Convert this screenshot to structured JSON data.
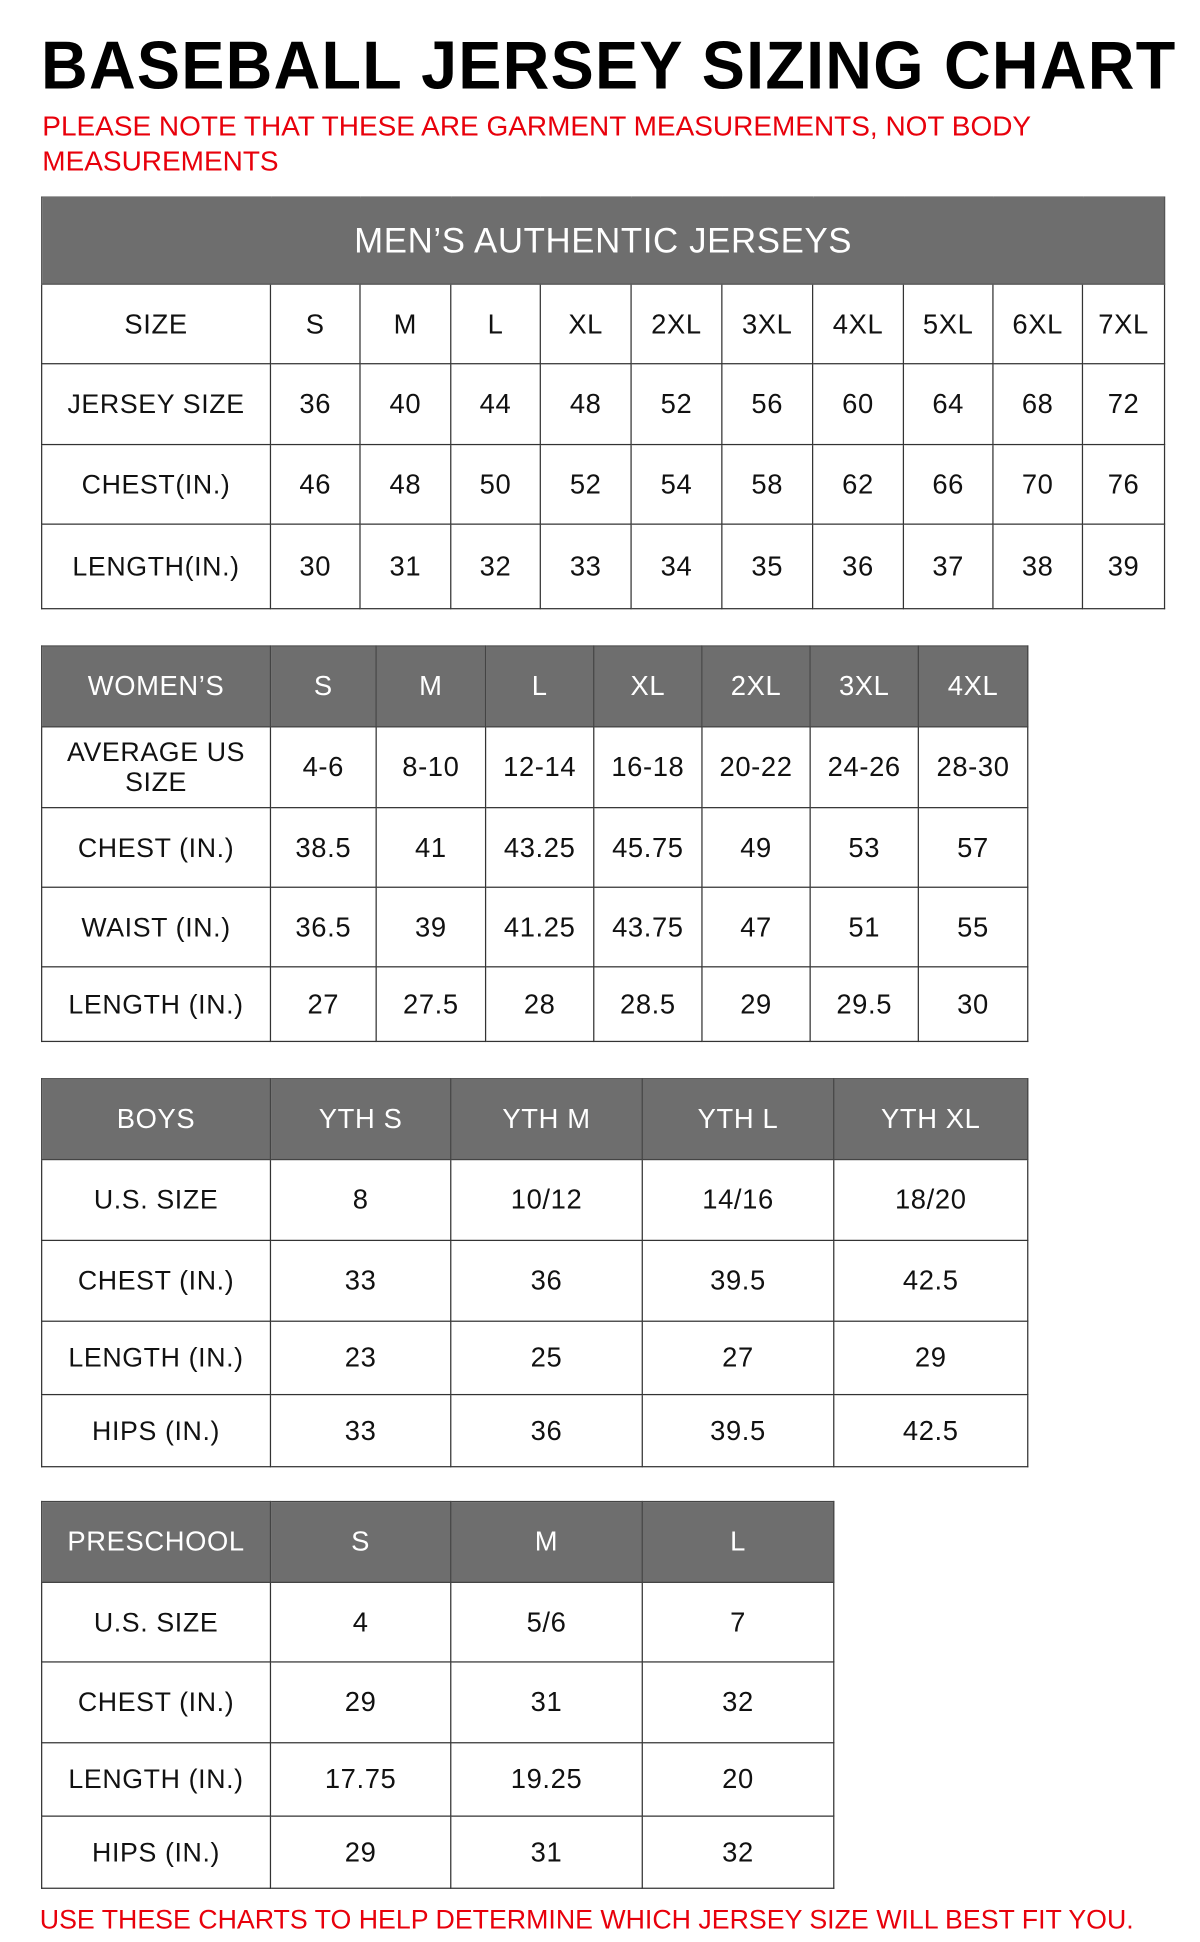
{
  "title": "BASEBALL JERSEY SIZING CHART",
  "note": "PLEASE NOTE THAT THESE ARE GARMENT MEASUREMENTS, NOT BODY MEASUREMENTS",
  "footer": "USE THESE CHARTS TO HELP DETERMINE WHICH JERSEY SIZE WILL BEST FIT YOU.",
  "colors": {
    "header_bg": "#6e6e6e",
    "note_red": "#e8000b"
  },
  "tables": [
    {
      "caption": "MEN’S AUTHENTIC JERSEYS",
      "header": [
        "SIZE",
        "S",
        "M",
        "L",
        "XL",
        "2XL",
        "3XL",
        "4XL",
        "5XL",
        "6XL",
        "7XL"
      ],
      "header_dark": false,
      "rows": [
        [
          "JERSEY SIZE",
          "36",
          "40",
          "44",
          "48",
          "52",
          "56",
          "60",
          "64",
          "68",
          "72"
        ],
        [
          "CHEST(IN.)",
          "46",
          "48",
          "50",
          "52",
          "54",
          "58",
          "62",
          "66",
          "70",
          "76"
        ],
        [
          "LENGTH(IN.)",
          "30",
          "31",
          "32",
          "33",
          "34",
          "35",
          "36",
          "37",
          "38",
          "39"
        ]
      ]
    },
    {
      "header": [
        "WOMEN’S",
        "S",
        "M",
        "L",
        "XL",
        "2XL",
        "3XL",
        "4XL"
      ],
      "header_dark": true,
      "rows": [
        [
          "AVERAGE US SIZE",
          "4-6",
          "8-10",
          "12-14",
          "16-18",
          "20-22",
          "24-26",
          "28-30"
        ],
        [
          "CHEST (IN.)",
          "38.5",
          "41",
          "43.25",
          "45.75",
          "49",
          "53",
          "57"
        ],
        [
          "WAIST (IN.)",
          "36.5",
          "39",
          "41.25",
          "43.75",
          "47",
          "51",
          "55"
        ],
        [
          "LENGTH (IN.)",
          "27",
          "27.5",
          "28",
          "28.5",
          "29",
          "29.5",
          "30"
        ]
      ]
    },
    {
      "header": [
        "BOYS",
        "YTH S",
        "YTH M",
        "YTH L",
        "YTH XL"
      ],
      "header_dark": true,
      "rows": [
        [
          "U.S. SIZE",
          "8",
          "10/12",
          "14/16",
          "18/20"
        ],
        [
          "CHEST (IN.)",
          "33",
          "36",
          "39.5",
          "42.5"
        ],
        [
          "LENGTH (IN.)",
          "23",
          "25",
          "27",
          "29"
        ],
        [
          "HIPS (IN.)",
          "33",
          "36",
          "39.5",
          "42.5"
        ]
      ]
    },
    {
      "header": [
        "PRESCHOOL",
        "S",
        "M",
        "L"
      ],
      "header_dark": true,
      "rows": [
        [
          "U.S. SIZE",
          "4",
          "5/6",
          "7"
        ],
        [
          "CHEST (IN.)",
          "29",
          "31",
          "32"
        ],
        [
          "LENGTH (IN.)",
          "17.75",
          "19.25",
          "20"
        ],
        [
          "HIPS (IN.)",
          "29",
          "31",
          "32"
        ]
      ]
    }
  ]
}
